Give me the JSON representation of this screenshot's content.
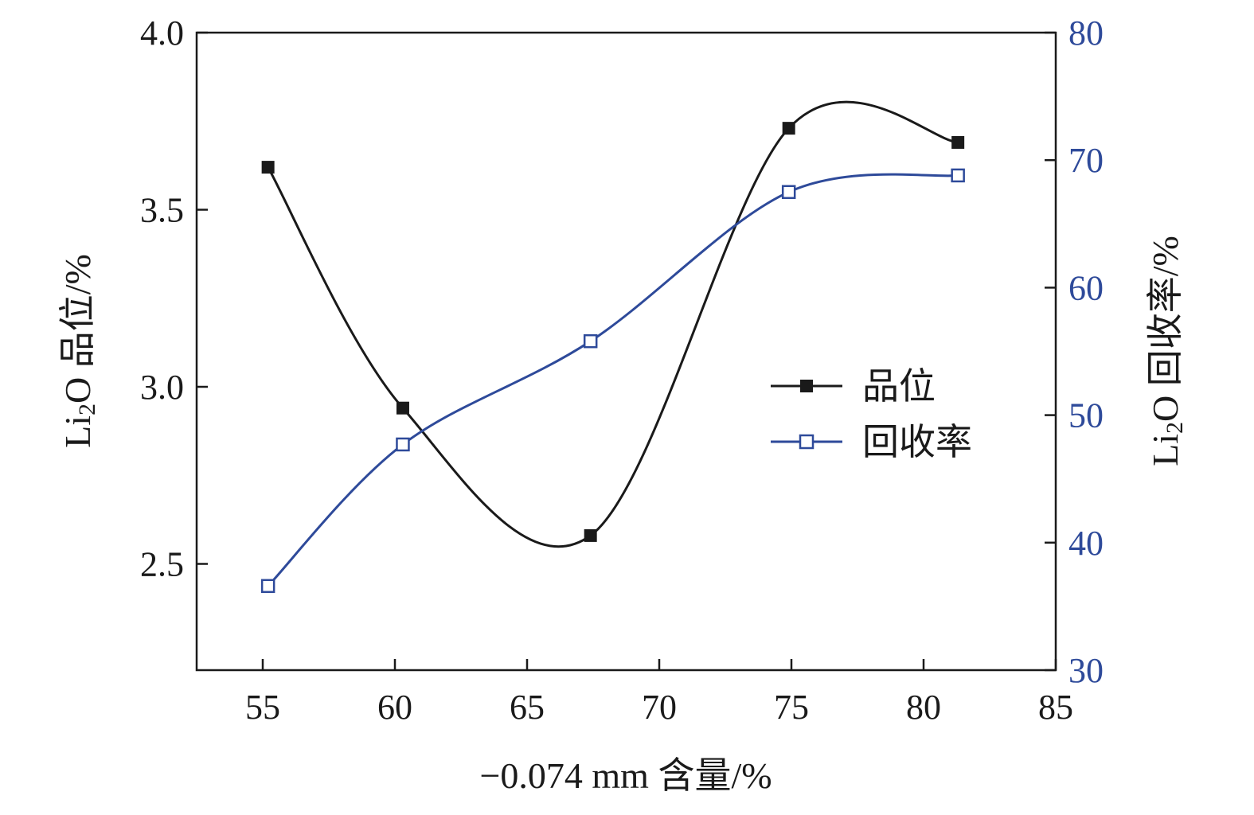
{
  "colors": {
    "grade": "#1a1a1a",
    "recovery": "#2e4a9a",
    "axis": "#1a1a1a"
  },
  "chart_data": {
    "type": "line",
    "x": [
      55.2,
      60.3,
      67.4,
      74.9,
      81.3
    ],
    "xlim": [
      52.5,
      85
    ],
    "xticks": [
      55,
      60,
      65,
      70,
      75,
      80,
      85
    ],
    "xlabel": "−0.074 mm 含量/%",
    "ylabel_left": {
      "main": "Li",
      "sub": "2",
      "rest": "O 品位/%"
    },
    "ylabel_right": {
      "main": "Li",
      "sub": "2",
      "rest": "O 回收率/%"
    },
    "ylim_left": [
      2.2,
      4.0
    ],
    "yticks_left": [
      "2.5",
      "3.0",
      "3.5",
      "4.0"
    ],
    "ylim_right": [
      30,
      80
    ],
    "yticks_right": [
      "30",
      "40",
      "50",
      "60",
      "70",
      "80"
    ],
    "legend_position": "right-center",
    "grid": false,
    "series": [
      {
        "name": "品位",
        "axis": "left",
        "marker": "filled-square",
        "values": [
          3.62,
          2.94,
          2.58,
          3.73,
          3.69
        ]
      },
      {
        "name": "回收率",
        "axis": "right",
        "marker": "open-square",
        "values": [
          36.6,
          47.7,
          55.8,
          67.5,
          68.8
        ]
      }
    ]
  }
}
